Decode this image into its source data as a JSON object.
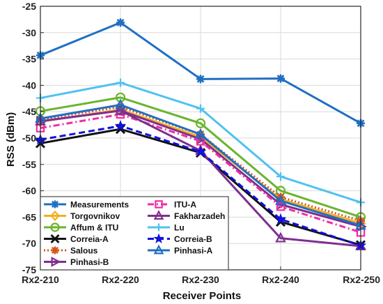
{
  "chart_data": {
    "type": "line",
    "categories": [
      "Rx2-210",
      "Rx2-220",
      "Rx2-230",
      "Rx2-240",
      "Rx2-250"
    ],
    "xlabel": "Receiver Points",
    "ylabel": "RSS (dBm)",
    "ylim": [
      -75,
      -25
    ],
    "yticks": [
      -25,
      -30,
      -35,
      -40,
      -45,
      -50,
      -55,
      -60,
      -65,
      -70,
      -75
    ],
    "grid": true,
    "legend": {
      "position": "bottom-left",
      "columns": 2
    },
    "series": [
      {
        "name": "Measurements",
        "color": "#1f6fc4",
        "marker": "asterisk",
        "dash": "solid",
        "values": [
          -34.3,
          -28.1,
          -38.8,
          -38.7,
          -47.2
        ]
      },
      {
        "name": "Torgovnikov",
        "color": "#f2b01e",
        "marker": "diamond",
        "dash": "solid",
        "values": [
          -46.9,
          -44.6,
          -49.8,
          -61.6,
          -66.2
        ]
      },
      {
        "name": "Affum & ITU",
        "color": "#6ab42d",
        "marker": "circle",
        "dash": "solid",
        "values": [
          -44.9,
          -42.3,
          -47.2,
          -60.0,
          -65.0
        ]
      },
      {
        "name": "Correia-A",
        "color": "#111111",
        "marker": "x",
        "dash": "solid",
        "values": [
          -51.0,
          -48.3,
          -52.8,
          -65.9,
          -70.3
        ]
      },
      {
        "name": "Salous",
        "color": "#d9541a",
        "marker": "asterisk",
        "dash": "dotted",
        "values": [
          -46.5,
          -44.1,
          -49.3,
          -61.2,
          -65.7
        ]
      },
      {
        "name": "Pinhasi-B",
        "color": "#7e2f8e",
        "marker": "triangle-right",
        "dash": "solid",
        "values": [
          -46.8,
          -44.8,
          -50.2,
          -62.6,
          -66.8
        ]
      },
      {
        "name": "ITU-A",
        "color": "#ee2ea5",
        "marker": "square",
        "dash": "dashdot",
        "values": [
          -48.1,
          -45.5,
          -50.6,
          -63.0,
          -67.9
        ]
      },
      {
        "name": "Fakharzadeh",
        "color": "#7e2f8e",
        "marker": "triangle-up",
        "dash": "solid",
        "values": [
          -46.8,
          -44.8,
          -52.4,
          -69.0,
          -70.5
        ]
      },
      {
        "name": "Lu",
        "color": "#4fc2ef",
        "marker": "plus",
        "dash": "solid",
        "values": [
          -42.4,
          -39.5,
          -44.4,
          -57.3,
          -62.2
        ]
      },
      {
        "name": "Correia-B",
        "color": "#1111dd",
        "marker": "star",
        "dash": "dashed",
        "values": [
          -50.3,
          -47.7,
          -52.6,
          -65.4,
          -70.4
        ]
      },
      {
        "name": "Pinhasi-A",
        "color": "#1f6fc4",
        "marker": "triangle-up",
        "dash": "solid",
        "values": [
          -46.3,
          -43.7,
          -49.3,
          -61.9,
          -66.6
        ]
      }
    ]
  }
}
